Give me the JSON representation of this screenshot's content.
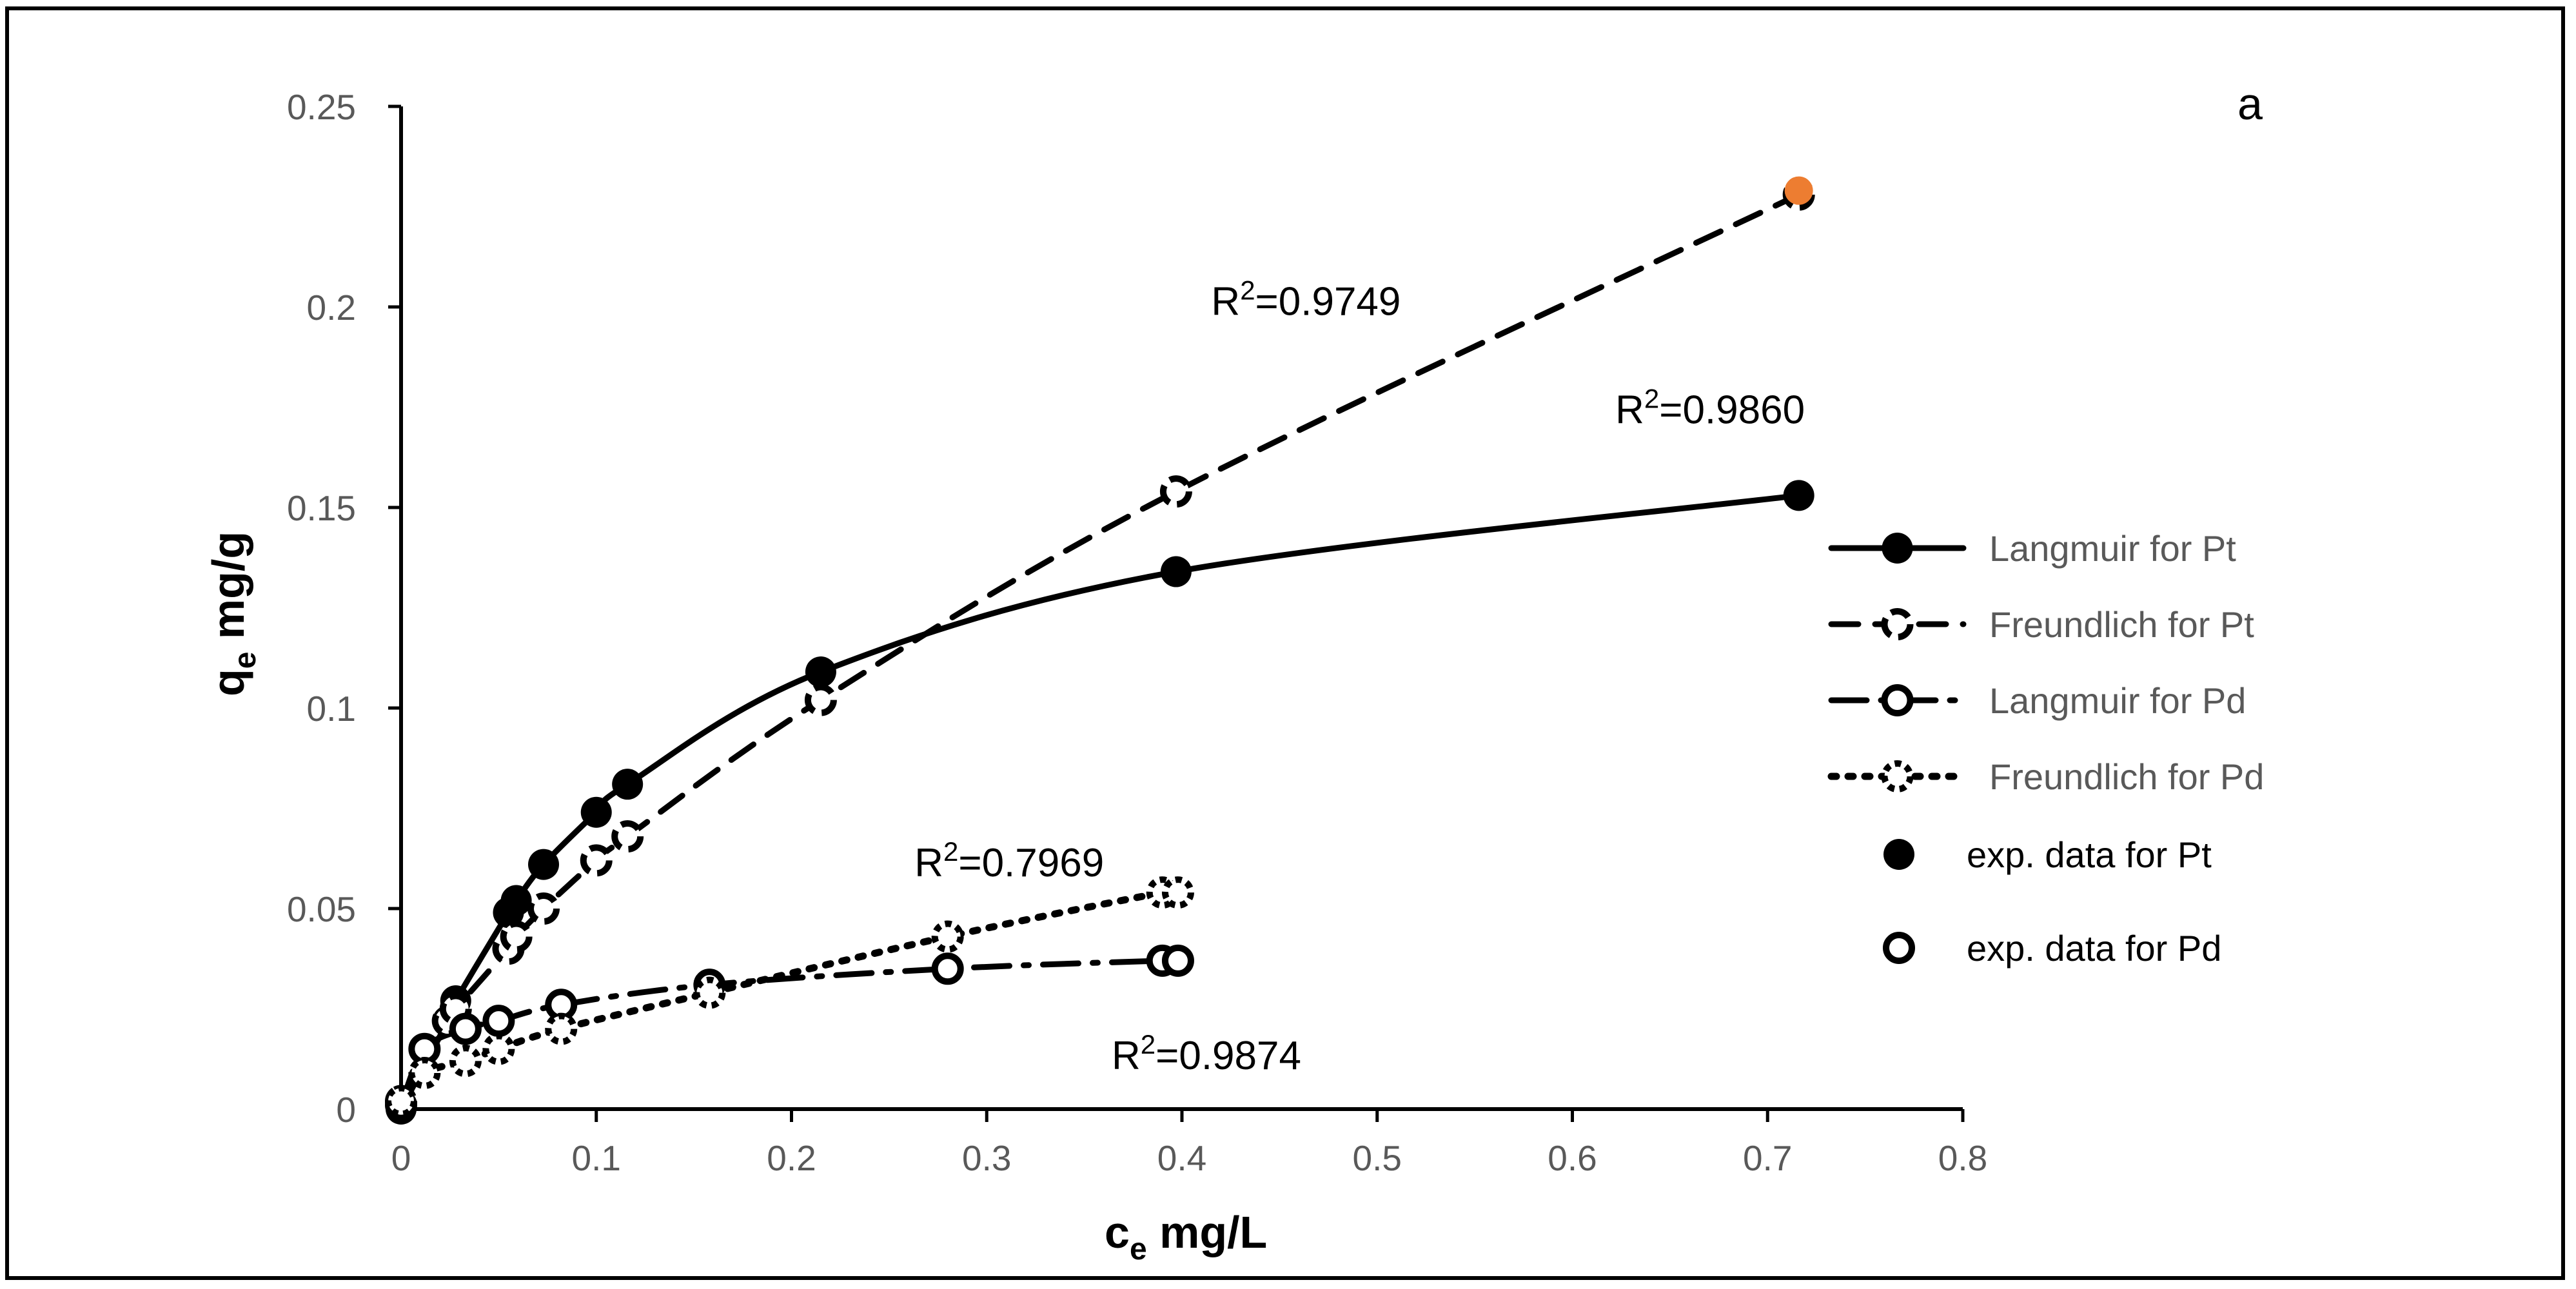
{
  "chart_data": {
    "type": "scatter",
    "panel_label": "a",
    "xlabel": {
      "main": "c",
      "sub": "e",
      "rest": " mg/L"
    },
    "ylabel": {
      "main": "q",
      "sub": "e",
      "rest": " mg/g"
    },
    "xlim": [
      0,
      0.8
    ],
    "ylim": [
      0,
      0.25
    ],
    "xticks": [
      0,
      0.1,
      0.2,
      0.3,
      0.4,
      0.5,
      0.6,
      0.7,
      0.8
    ],
    "xtick_labels": [
      "0",
      "0.1",
      "0.2",
      "0.3",
      "0.4",
      "0.5",
      "0.6",
      "0.7",
      "0.8"
    ],
    "yticks": [
      0,
      0.05,
      0.1,
      0.15,
      0.2,
      0.25
    ],
    "ytick_labels": [
      "0",
      "0.05",
      "0.1",
      "0.15",
      "0.2",
      "0.25"
    ],
    "series": [
      {
        "name": "Langmuir for Pt",
        "style": "solid",
        "marker": "filled",
        "x": [
          0.0,
          0.024,
          0.028,
          0.055,
          0.059,
          0.073,
          0.1,
          0.116,
          0.215,
          0.397,
          0.716
        ],
        "y": [
          0.0,
          0.022,
          0.027,
          0.049,
          0.052,
          0.061,
          0.074,
          0.081,
          0.109,
          0.134,
          0.153
        ]
      },
      {
        "name": "Freundlich for Pt",
        "style": "dashed",
        "marker": "open-dashed",
        "x": [
          0.0,
          0.024,
          0.028,
          0.055,
          0.059,
          0.073,
          0.1,
          0.116,
          0.215,
          0.397,
          0.716
        ],
        "y": [
          0.002,
          0.022,
          0.025,
          0.04,
          0.043,
          0.05,
          0.062,
          0.068,
          0.102,
          0.154,
          0.228
        ]
      },
      {
        "name": "Langmuir for Pd",
        "style": "dashdot",
        "marker": "open",
        "x": [
          0.0,
          0.012,
          0.033,
          0.05,
          0.082,
          0.158,
          0.28,
          0.39,
          0.398
        ],
        "y": [
          0.001,
          0.015,
          0.02,
          0.022,
          0.026,
          0.031,
          0.035,
          0.037,
          0.037
        ]
      },
      {
        "name": "Freundlich for Pd",
        "style": "dotted",
        "marker": "open-dotted",
        "x": [
          0.0,
          0.012,
          0.033,
          0.05,
          0.082,
          0.158,
          0.28,
          0.39,
          0.398
        ],
        "y": [
          0.002,
          0.009,
          0.012,
          0.015,
          0.02,
          0.029,
          0.043,
          0.054,
          0.054
        ]
      }
    ],
    "exp_data": [
      {
        "name": "exp. data for Pt",
        "marker": "filled"
      },
      {
        "name": "exp. data for Pd",
        "marker": "open"
      }
    ],
    "highlight_point": {
      "x": 0.716,
      "y": 0.229,
      "color": "#ED7D31"
    },
    "annotations": [
      {
        "sup_base": "R",
        "sup": "2",
        "value": "=0.9749",
        "x": 0.415,
        "y": 0.198
      },
      {
        "sup_base": "R",
        "sup": "2",
        "value": "=0.9860",
        "x": 0.622,
        "y": 0.171
      },
      {
        "sup_base": "R",
        "sup": "2",
        "value": "=0.7969",
        "x": 0.263,
        "y": 0.058
      },
      {
        "sup_base": "R",
        "sup": "2",
        "value": "=0.9874",
        "x": 0.364,
        "y": 0.01
      }
    ],
    "legend_position": "right",
    "colors": {
      "line": "#000000",
      "tick": "#595959",
      "highlight": "#ED7D31"
    }
  }
}
